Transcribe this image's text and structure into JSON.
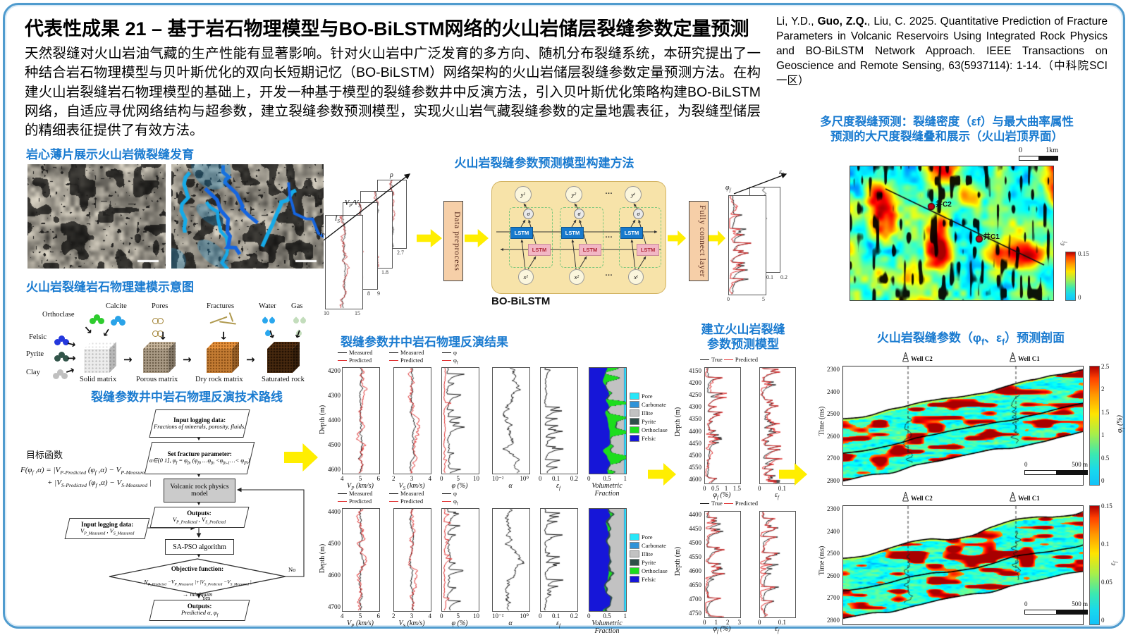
{
  "header": {
    "title_prefix": "代表性成果 21 –",
    "title_rest": " 基于岩石物理模型与BO-BiLSTM网络的火山岩储层裂缝参数定量预测",
    "abstract": "天然裂缝对火山岩油气藏的生产性能有显著影响。针对火山岩中广泛发育的多方向、随机分布裂缝系统，本研究提出了一种结合岩石物理模型与贝叶斯优化的双向长短期记忆（BO-BiLSTM）网络架构的火山岩储层裂缝参数定量预测方法。在构建火山岩裂缝岩石物理模型的基础上，开发一种基于模型的裂缝参数井中反演方法，引入贝叶斯优化策略构建BO-BiLSTM网络，自适应寻优网络结构与超参数，建立裂缝参数预测模型，实现火山岩气藏裂缝参数的定量地震表征，为裂缝型储层的精细表征提供了有效方法。"
  },
  "citation": {
    "pre": "Li, Y.D., ",
    "bold": "Guo, Z.Q.",
    "post": ", Liu, C. 2025. Quantitative Prediction of Fracture Parameters in Volcanic Reservoirs Using Integrated Rock Physics and BO-BiLSTM Network Approach. IEEE Transactions on Geoscience and Remote Sensing, 63(5937114): 1-14.（中科院SCI一区）"
  },
  "thin": {
    "heading": "岩心薄片展示火山岩微裂缝发育"
  },
  "rock": {
    "heading": "火山岩裂缝岩石物理建模示意图",
    "minerals": [
      {
        "label": "Orthoclase",
        "color": "#2ecc2e"
      },
      {
        "label": "Felsic",
        "color": "#2438dd"
      },
      {
        "label": "Pyrite",
        "color": "#32554a"
      },
      {
        "label": "Clay",
        "color": "#c0c0c0"
      },
      {
        "label": "Calcite",
        "color": "#2aa3e8"
      }
    ],
    "tops": [
      "Pores",
      "Fractures",
      "Water",
      "Gas"
    ],
    "stages": [
      "Solid matrix",
      "Porous matrix",
      "Dry rock matrix",
      "Saturated rock"
    ]
  },
  "flow": {
    "heading": "裂缝参数井中岩石物理反演技术路线",
    "objective_label": "目标函数",
    "f1": "F(φ~f~ ,α) = |V~P-Predicted~ (φ~f~ ,α) − V~P-Measured~ |",
    "f2": "+ |V~S-Predicted~ (φ~f~ ,α) − V~S-Measured~ |",
    "n1t": "Input logging data:",
    "n1b": "Fractions of minerals, porosity, fluids.",
    "n2t": "Set fracture parameter:",
    "n2b": "α∈(0 1], φ~f~ = φ~fn~ (φ~f0~ …φ~fn~ <φ~fn-1~…< φ~fN~)",
    "n3": "Volcanic rock physics model",
    "n4t": "Outputs:",
    "n4b": "V~P_Predicted~ , V~S_Predicted~",
    "n5t": "Input logging data:",
    "n5b": "V~P_Measured~ , V~S_Measured~",
    "n6": "SA-PSO algorithm",
    "n7t": "Objective function:",
    "n7b": "|V~P_Predicted~ −V~P_Measured~ |+|V~S_Predicted~ −V~S_Measured~ |",
    "n7c": "→  minimum",
    "yes": "Yes",
    "no": "No",
    "n8t": "Outputs:",
    "n8b": "Predictied α, φ~f~"
  },
  "model": {
    "heading": "火山岩裂缝参数预测模型构建方法",
    "in_labels": [
      "I~P~",
      "I~S~",
      "V~P~/V~S~",
      "ρ"
    ],
    "in_ticks": {
      "ip1": "10",
      "ip2": "15",
      "is1": "8",
      "is2": "9",
      "vpvs": "1.8",
      "rho": "2.7"
    },
    "preprocess": "Data preprocess",
    "fc": "Fully connect layer",
    "bilstm": "BO-BiLSTM",
    "lstm": "LSTM",
    "sigma": "σ",
    "dots": "…",
    "y": [
      [
        "y",
        "1"
      ],
      [
        "y",
        "2"
      ],
      [
        "y",
        "t"
      ]
    ],
    "x": [
      [
        "x",
        "1"
      ],
      [
        "x",
        "2"
      ],
      [
        "x",
        "t"
      ]
    ],
    "out_phif": "φ~f~",
    "out_ef": "ε~f~",
    "out_t0": "0",
    "out_t5": "5",
    "out_bt1": "0.1",
    "out_bt2": "0.2"
  },
  "wellinv": {
    "heading": "裂缝参数井中岩石物理反演结果",
    "leg_measured": "Measured",
    "leg_predicted": "Predicted",
    "leg_phi": "φ",
    "leg_phif": "φ~f~",
    "depth_label": "Depth (m)",
    "row1_depths": [
      "4200",
      "4300",
      "4400",
      "4500",
      "4600"
    ],
    "row2_depths": [
      "4400",
      "4500",
      "4600",
      "4700"
    ],
    "xlabels": [
      "V~P~ (km/s)",
      "V~S~ (km/s)",
      "φ (%)",
      "α",
      "ε~f~",
      "Volumetric Fraction"
    ],
    "t_vp": [
      "4",
      "5",
      "6"
    ],
    "t_vs": [
      "2",
      "3",
      "4"
    ],
    "t_phi": [
      "0",
      "5",
      "10"
    ],
    "t_alpha": [
      "10⁻²",
      "10⁰"
    ],
    "t_ef": [
      "0",
      "0.1",
      "0.2"
    ],
    "t_vol": [
      "0",
      "0.5",
      "1"
    ],
    "vol_legend": [
      {
        "label": "Pore",
        "color": "#27e7f9"
      },
      {
        "label": "Carbonate",
        "color": "#2f93d8"
      },
      {
        "label": "Illite",
        "color": "#c2c2c2"
      },
      {
        "label": "Pyrite",
        "color": "#2e4f49"
      },
      {
        "label": "Orthoclase",
        "color": "#1ddd1d"
      },
      {
        "label": "Felsic",
        "color": "#1616d8"
      }
    ]
  },
  "pred": {
    "heading1": "建立火山岩裂缝",
    "heading2": "参数预测模型",
    "leg_true": "True",
    "leg_pred": "Predicted",
    "depth_label": "Depth (m)",
    "p1_depths": [
      "4150",
      "4200",
      "4250",
      "4300",
      "4350",
      "4400",
      "4450",
      "4500",
      "4550",
      "4600"
    ],
    "p2_depths": [
      "4400",
      "4450",
      "4500",
      "4550",
      "4600",
      "4650",
      "4700",
      "4750"
    ],
    "p1_phif": [
      "0",
      "0.5",
      "1",
      "1.5"
    ],
    "p2_phif": [
      "0",
      "1",
      "2",
      "3"
    ],
    "t_ef": [
      "0",
      "0.1"
    ],
    "xl_phif": "φ~f~ (%)",
    "xl_ef": "ε~f~"
  },
  "ms": {
    "heading1": "多尺度裂缝预测：裂缝密度（εf）与最大曲率属性",
    "heading2": "预测的大尺度裂缝叠和展示（火山岩顶界面）",
    "sb0": "0",
    "sb1": "1km",
    "well1": "井C2",
    "well2": "井C1",
    "cb_label": "ε~f~",
    "cb_max": "0.15",
    "cb_min": "0"
  },
  "prof": {
    "heading": "火山岩裂缝参数（φ~f~、ε~f~）预测剖面",
    "time_label": "Time (ms)",
    "times": [
      "2300",
      "2400",
      "2500",
      "2600",
      "2700",
      "2800"
    ],
    "well1": "Well C2",
    "well2": "Well C1",
    "sb0": "0",
    "sb1": "500 m",
    "cb1_label": "φ~f~ (%)",
    "cb1_ticks": [
      "2.5",
      "2",
      "1.5",
      "1",
      "0.5",
      "0"
    ],
    "cb2_label": "ε~f~",
    "cb2_ticks": [
      "0.15",
      "0.1",
      "0.05",
      "0"
    ]
  }
}
